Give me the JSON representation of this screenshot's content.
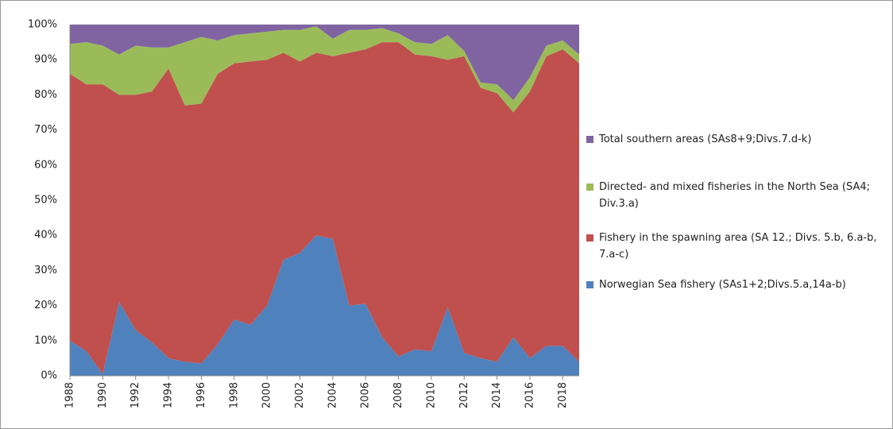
{
  "chart_data": {
    "type": "stacked_area_100",
    "x": [
      1988,
      1989,
      1990,
      1991,
      1992,
      1993,
      1994,
      1995,
      1996,
      1997,
      1998,
      1999,
      2000,
      2001,
      2002,
      2003,
      2004,
      2005,
      2006,
      2007,
      2008,
      2009,
      2010,
      2011,
      2012,
      2013,
      2014,
      2015,
      2016,
      2017,
      2018,
      2019
    ],
    "xlim": [
      1988,
      2019
    ],
    "xticks": [
      1988,
      1990,
      1992,
      1994,
      1996,
      1998,
      2000,
      2002,
      2004,
      2006,
      2008,
      2010,
      2012,
      2014,
      2016,
      2018
    ],
    "ylim": [
      0,
      100
    ],
    "yticks": [
      {
        "value": 0,
        "label": "0%"
      },
      {
        "value": 10,
        "label": "10%"
      },
      {
        "value": 20,
        "label": "20%"
      },
      {
        "value": 30,
        "label": "30%"
      },
      {
        "value": 40,
        "label": "40%"
      },
      {
        "value": 50,
        "label": "50%"
      },
      {
        "value": 60,
        "label": "60%"
      },
      {
        "value": 70,
        "label": "70%"
      },
      {
        "value": 80,
        "label": "80%"
      },
      {
        "value": 90,
        "label": "90%"
      },
      {
        "value": 100,
        "label": "100%"
      }
    ],
    "grid": true,
    "legend": "right",
    "series": [
      {
        "name": "Norwegian Sea fishery (SAs1+2;Divs.5.a,14a-b)",
        "color": "#4f81bd",
        "values": [
          10,
          7,
          0.5,
          21,
          13,
          9.5,
          5,
          4,
          3.5,
          9,
          16,
          14.5,
          20,
          33,
          35,
          40,
          39,
          20,
          20.5,
          11,
          5.5,
          7.5,
          7,
          19.5,
          6.5,
          5,
          4,
          11,
          5,
          8.5,
          8.5,
          4
        ]
      },
      {
        "name": "Fishery in the spawning area (SA 12.; Divs. 5.b, 6.a-b, 7.a-c)",
        "color": "#c0504d",
        "values": [
          76,
          76,
          82.5,
          59,
          67,
          71.5,
          82.5,
          73,
          74,
          77,
          73,
          75,
          70,
          59,
          54.5,
          52,
          52,
          72,
          72.5,
          84,
          89.5,
          84,
          84,
          70.5,
          84.5,
          77,
          76.5,
          64,
          76,
          82.5,
          84.5,
          85
        ]
      },
      {
        "name": "Directed- and mixed fisheries in the North Sea (SA4; Div.3.a)",
        "color": "#9bbb59",
        "values": [
          8.5,
          12,
          11,
          11.5,
          14,
          12.5,
          6,
          18,
          19,
          9.5,
          8,
          8,
          8,
          6.5,
          9,
          7.5,
          5,
          6.5,
          5.5,
          4,
          2.5,
          3.5,
          3.5,
          7,
          1.5,
          1.5,
          2.5,
          3.5,
          4,
          3,
          2.5,
          2.5
        ]
      },
      {
        "name": "Total southern areas (SAs8+9;Divs.7.d-k)",
        "color": "#8064a2",
        "values": [
          5.5,
          5,
          6,
          8.5,
          6,
          6.5,
          6.5,
          5,
          3.5,
          4.5,
          3,
          2.5,
          2,
          1.5,
          1.5,
          0.5,
          4,
          1.5,
          1.5,
          1,
          2.5,
          5,
          5.5,
          3,
          7.5,
          16.5,
          17,
          21.5,
          15,
          6,
          4.5,
          8.5
        ]
      }
    ]
  }
}
